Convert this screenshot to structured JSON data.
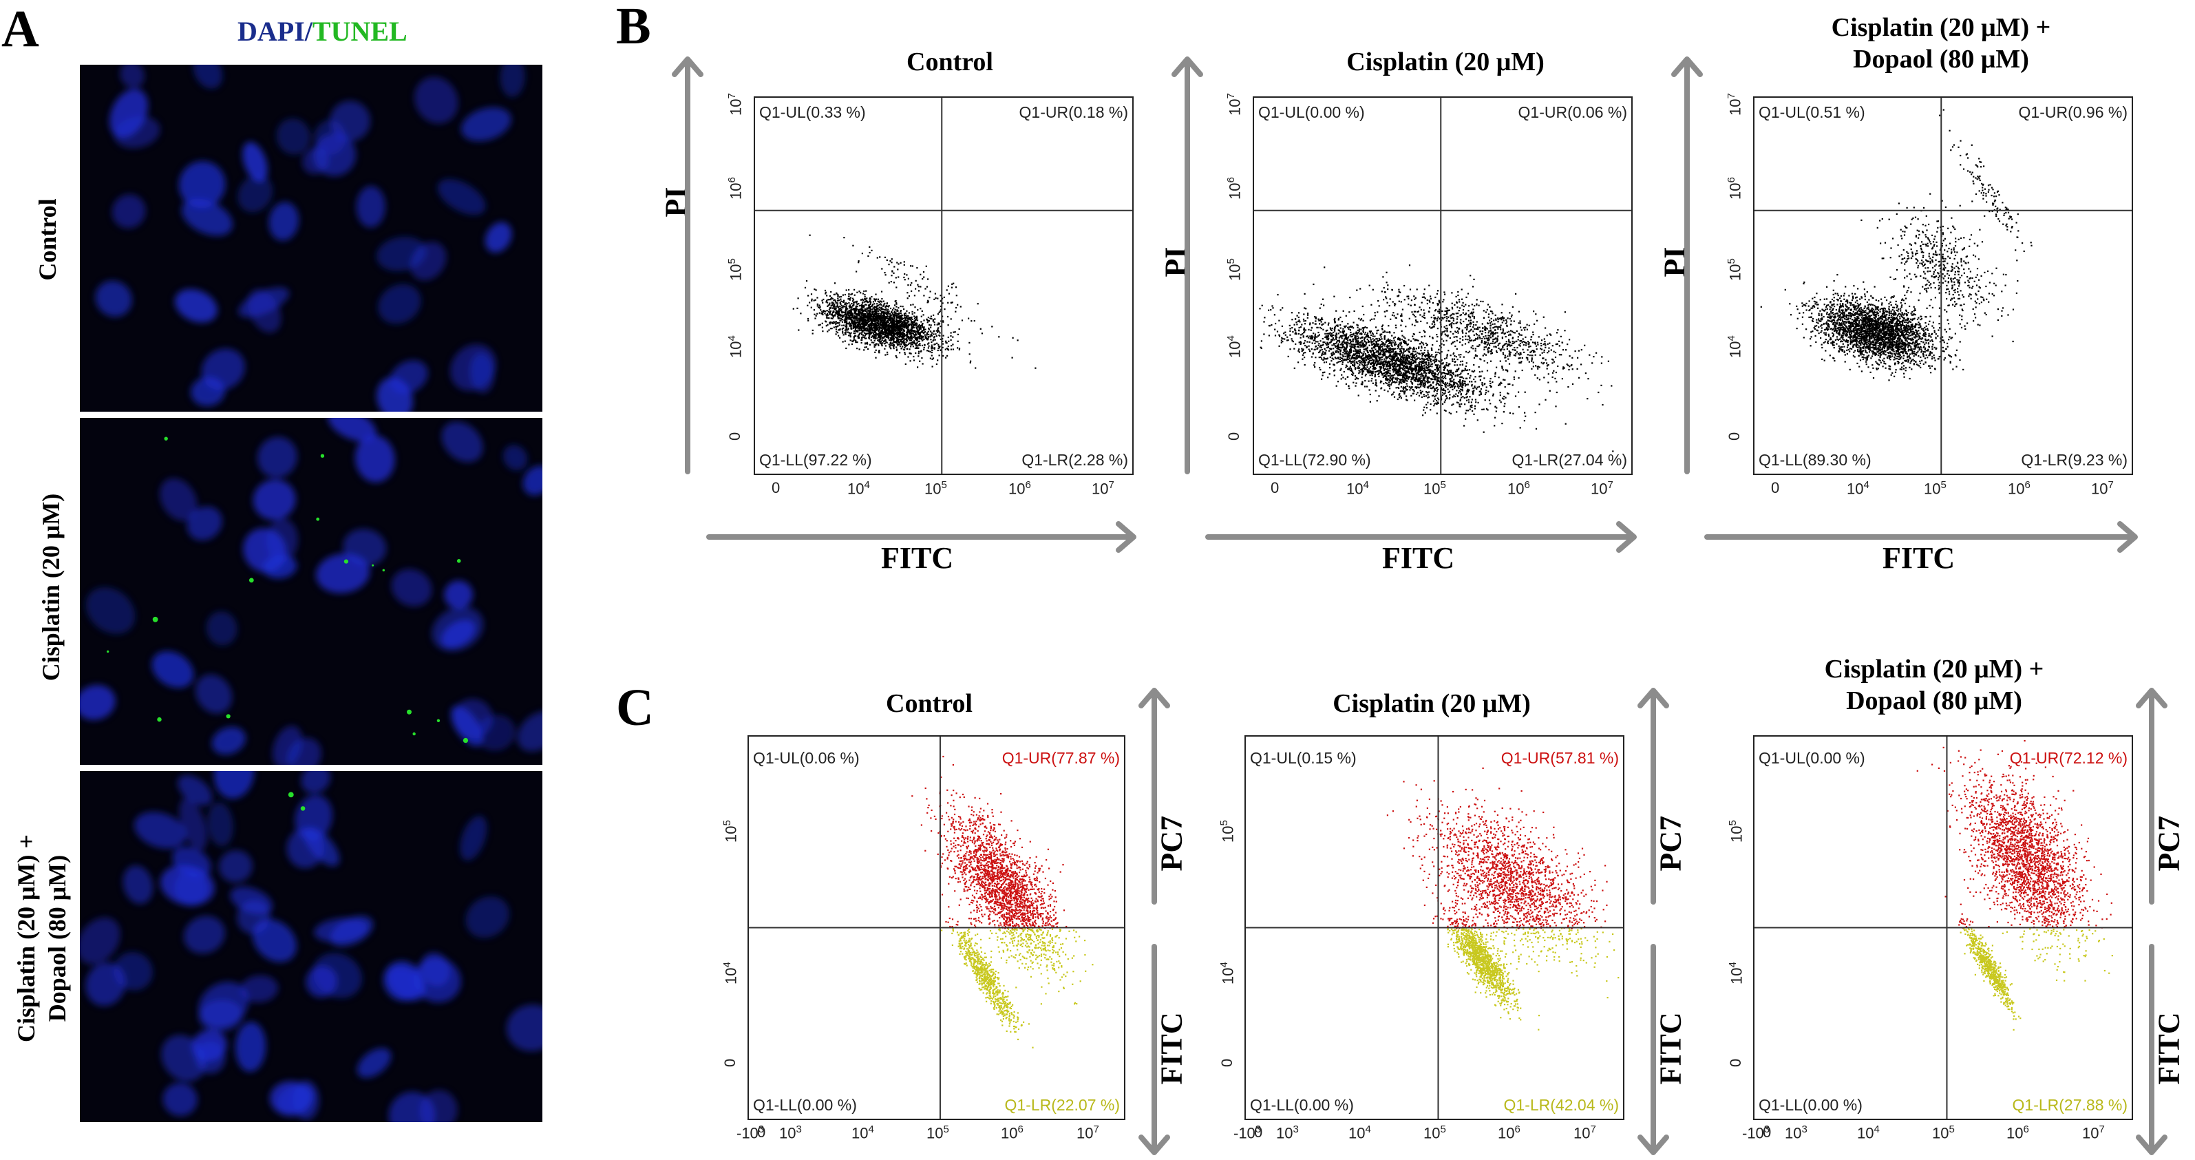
{
  "panel_a": {
    "letter": "A",
    "header_dapi": "DAPI",
    "header_sep": "/",
    "header_tunel": "TUNEL",
    "rows": [
      {
        "label": "Control"
      },
      {
        "label": "Cisplatin (20 μM)"
      },
      {
        "label_line1": "Cisplatin (20 μM) +",
        "label_line2": "Dopaol (80 μM)"
      }
    ],
    "colors": {
      "dapi": "#1f2fd6",
      "tunel": "#27e02b",
      "background": "#03030e"
    }
  },
  "panel_b": {
    "letter": "B",
    "x_axis_name": "FITC",
    "y_axis_name": "PI",
    "x_ticks": [
      "0",
      "10^4",
      "10^5",
      "10^6",
      "10^7"
    ],
    "y_ticks": [
      "0",
      "10^4",
      "10^5",
      "10^6",
      "10^7"
    ],
    "plots": [
      {
        "title_line1": "Control",
        "title_line2": "",
        "ul": "Q1-UL(0.33 %)",
        "ur": "Q1-UR(0.18 %)",
        "ll": "Q1-LL(97.22 %)",
        "lr": "Q1-LR(2.28 %)"
      },
      {
        "title_line1": "Cisplatin (20 μM)",
        "title_line2": "",
        "ul": "Q1-UL(0.00 %)",
        "ur": "Q1-UR(0.06 %)",
        "ll": "Q1-LL(72.90 %)",
        "lr": "Q1-LR(27.04 %)"
      },
      {
        "title_line1": "Cisplatin (20 μM) +",
        "title_line2": "Dopaol (80 μM)",
        "ul": "Q1-UL(0.51 %)",
        "ur": "Q1-UR(0.96 %)",
        "ll": "Q1-LL(89.30 %)",
        "lr": "Q1-LR(9.23 %)"
      }
    ]
  },
  "panel_c": {
    "letter": "C",
    "y_axis_top_name": "PC7",
    "y_axis_bottom_name": "FITC",
    "x_ticks": [
      "-10^3",
      "0",
      "10^3",
      "10^4",
      "10^5",
      "10^6",
      "10^7"
    ],
    "y_ticks": [
      "0",
      "10^4",
      "10^5"
    ],
    "colors": {
      "upper": "#cc1111",
      "lower": "#c8c81e"
    },
    "plots": [
      {
        "title_line1": "Control",
        "title_line2": "",
        "ul": "Q1-UL(0.06 %)",
        "ur": "Q1-UR(77.87 %)",
        "ll": "Q1-LL(0.00 %)",
        "lr": "Q1-LR(22.07 %)"
      },
      {
        "title_line1": "Cisplatin (20 μM)",
        "title_line2": "",
        "ul": "Q1-UL(0.15 %)",
        "ur": "Q1-UR(57.81 %)",
        "ll": "Q1-LL(0.00 %)",
        "lr": "Q1-LR(42.04 %)"
      },
      {
        "title_line1": "Cisplatin (20 μM) +",
        "title_line2": "Dopaol (80 μM)",
        "ul": "Q1-UL(0.00 %)",
        "ur": "Q1-UR(72.12 %)",
        "ll": "Q1-LL(0.00 %)",
        "lr": "Q1-LR(27.88 %)"
      }
    ]
  },
  "chart_data": [
    {
      "type": "scatter",
      "title": "Control",
      "xlabel": "FITC",
      "ylabel": "PI",
      "quadrants": {
        "Q1-UL": 0.33,
        "Q1-UR": 0.18,
        "Q1-LL": 97.22,
        "Q1-LR": 2.28
      }
    },
    {
      "type": "scatter",
      "title": "Cisplatin (20 μM)",
      "xlabel": "FITC",
      "ylabel": "PI",
      "quadrants": {
        "Q1-UL": 0.0,
        "Q1-UR": 0.06,
        "Q1-LL": 72.9,
        "Q1-LR": 27.04
      }
    },
    {
      "type": "scatter",
      "title": "Cisplatin (20 μM) + Dopaol (80 μM)",
      "xlabel": "FITC",
      "ylabel": "PI",
      "quadrants": {
        "Q1-UL": 0.51,
        "Q1-UR": 0.96,
        "Q1-LL": 89.3,
        "Q1-LR": 9.23
      }
    },
    {
      "type": "scatter",
      "title": "Control",
      "ylabel": "PC7 / FITC",
      "quadrants": {
        "Q1-UL": 0.06,
        "Q1-UR": 77.87,
        "Q1-LL": 0.0,
        "Q1-LR": 22.07
      }
    },
    {
      "type": "scatter",
      "title": "Cisplatin (20 μM)",
      "ylabel": "PC7 / FITC",
      "quadrants": {
        "Q1-UL": 0.15,
        "Q1-UR": 57.81,
        "Q1-LL": 0.0,
        "Q1-LR": 42.04
      }
    },
    {
      "type": "scatter",
      "title": "Cisplatin (20 μM) + Dopaol (80 μM)",
      "ylabel": "PC7 / FITC",
      "quadrants": {
        "Q1-UL": 0.0,
        "Q1-UR": 72.12,
        "Q1-LL": 0.0,
        "Q1-LR": 27.88
      }
    }
  ]
}
